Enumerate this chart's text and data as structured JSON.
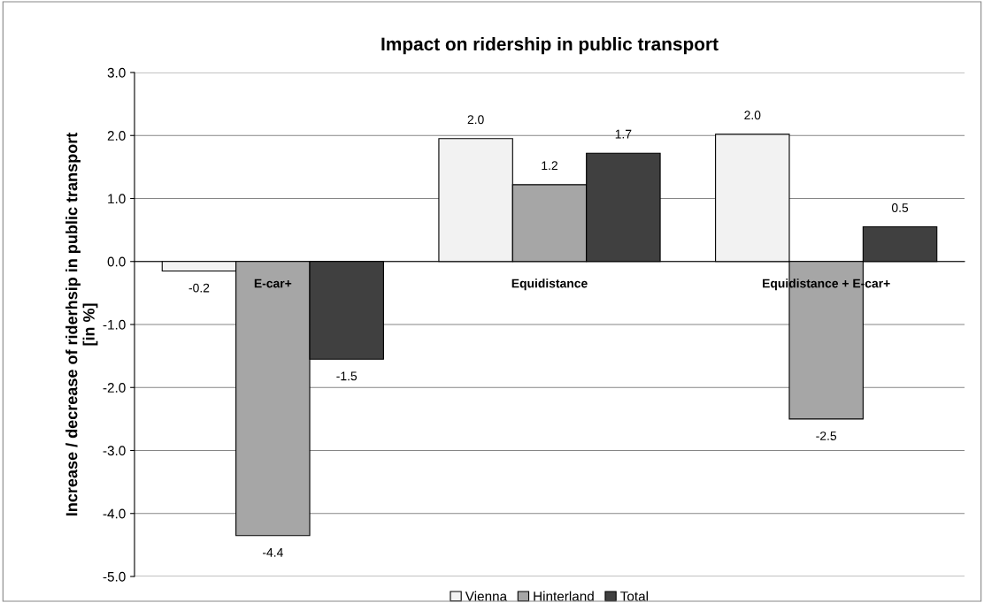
{
  "chart_data": {
    "type": "bar",
    "title": "Impact on ridership in public transport",
    "ylabel": "Increase / decrease of riderhsip in public transport\n[in %]",
    "categories": [
      "E-car+",
      "Equidistance",
      "Equidistance + E-car+"
    ],
    "series": [
      {
        "name": "Vienna",
        "color": "#f2f2f2",
        "values": [
          -0.15,
          1.95,
          2.02
        ],
        "value_labels": [
          "-0.2",
          "2.0",
          "2.0"
        ]
      },
      {
        "name": "Hinterland",
        "color": "#a6a6a6",
        "values": [
          -4.35,
          1.22,
          -2.5
        ],
        "value_labels": [
          "-4.4",
          "1.2",
          "-2.5"
        ]
      },
      {
        "name": "Total",
        "color": "#404040",
        "values": [
          -1.55,
          1.72,
          0.55
        ],
        "value_labels": [
          "-1.5",
          "1.7",
          "0.5"
        ]
      }
    ],
    "ylim": [
      -5.0,
      3.0
    ],
    "yticks": [
      {
        "value": -5,
        "label": "-5.0"
      },
      {
        "value": -4,
        "label": "-4.0"
      },
      {
        "value": -3,
        "label": "-3.0"
      },
      {
        "value": -2,
        "label": "-2.0"
      },
      {
        "value": -1,
        "label": "-1.0"
      },
      {
        "value": 0,
        "label": "0.0"
      },
      {
        "value": 1,
        "label": "1.0"
      },
      {
        "value": 2,
        "label": "2.0"
      },
      {
        "value": 3,
        "label": "3.0"
      }
    ],
    "grid": "y",
    "legend": "bottom"
  }
}
